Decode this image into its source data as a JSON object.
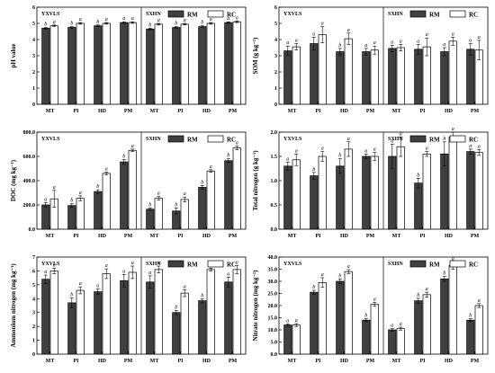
{
  "colors": {
    "rm_fill": "#404040",
    "rc_fill": "#ffffff",
    "outline": "#000000"
  },
  "chart_data": [
    {
      "type": "bar",
      "ylabel": "pH value",
      "ylim": [
        0,
        6
      ],
      "yticks": [
        0,
        1,
        2,
        3,
        4,
        5,
        6
      ],
      "sites": [
        "YXVLS",
        "SXHN"
      ],
      "categories": [
        "MT",
        "PI",
        "HD",
        "PM"
      ],
      "legend": [
        "RM",
        "RC"
      ],
      "grid": false,
      "legend_position": "top-right",
      "groups": [
        {
          "site": "YXVLS",
          "RM": [
            4.7,
            4.75,
            4.85,
            5.05
          ],
          "RM_err": [
            0.05,
            0.05,
            0.05,
            0.05
          ],
          "RC": [
            4.85,
            5.0,
            5.0,
            5.05
          ],
          "RC_err": [
            0.05,
            0.05,
            0.05,
            0.05
          ],
          "RM_sig": [
            "b",
            "b",
            "b",
            "a"
          ],
          "RC_sig": [
            "a",
            "a",
            "a",
            "a"
          ]
        },
        {
          "site": "SXHN",
          "RM": [
            4.65,
            4.75,
            4.8,
            5.05
          ],
          "RM_err": [
            0.05,
            0.05,
            0.05,
            0.05
          ],
          "RC": [
            4.95,
            4.95,
            5.0,
            5.1
          ],
          "RC_err": [
            0.05,
            0.05,
            0.05,
            0.05
          ],
          "RM_sig": [
            "b",
            "b",
            "b",
            "a"
          ],
          "RC_sig": [
            "a",
            "a",
            "a",
            "a"
          ]
        }
      ]
    },
    {
      "type": "bar",
      "ylabel": "SOM (g kg⁻¹)",
      "ylim": [
        0,
        6
      ],
      "yticks": [
        0,
        1,
        2,
        3,
        4,
        5,
        6
      ],
      "sites": [
        "YXVLS",
        "SXHN"
      ],
      "categories": [
        "MT",
        "PI",
        "HD",
        "PM"
      ],
      "legend": [
        "RM",
        "RC"
      ],
      "grid": false,
      "legend_position": "top-right",
      "groups": [
        {
          "site": "YXVLS",
          "RM": [
            3.3,
            3.75,
            3.25,
            3.25
          ],
          "RM_err": [
            0.3,
            0.4,
            0.2,
            0.2
          ],
          "RC": [
            3.55,
            4.3,
            4.05,
            3.35
          ],
          "RC_err": [
            0.2,
            0.5,
            0.35,
            0.25
          ],
          "RM_sig": [
            "a",
            "a",
            "b",
            "a"
          ],
          "RC_sig": [
            "a",
            "a",
            "a",
            "a"
          ]
        },
        {
          "site": "SXHN",
          "RM": [
            3.45,
            3.4,
            3.25,
            3.4
          ],
          "RM_err": [
            0.2,
            0.3,
            0.25,
            0.35
          ],
          "RC": [
            3.5,
            3.55,
            3.9,
            3.35
          ],
          "RC_err": [
            0.2,
            0.55,
            0.25,
            0.6
          ],
          "RM_sig": [
            "a",
            "a",
            "a",
            "a"
          ],
          "RC_sig": [
            "a",
            "a",
            "a",
            "a"
          ]
        }
      ]
    },
    {
      "type": "bar",
      "ylabel": "DOC (mg kg⁻¹)",
      "ylim": [
        0,
        800
      ],
      "yticks": [
        0,
        200,
        400,
        600,
        800
      ],
      "sites": [
        "YXVLS",
        "SXHN"
      ],
      "categories": [
        "MT",
        "PI",
        "HD",
        "PM"
      ],
      "legend": [
        "RM",
        "RC"
      ],
      "grid": false,
      "legend_position": "top-right",
      "groups": [
        {
          "site": "YXVLS",
          "RM": [
            200,
            195,
            310,
            555
          ],
          "RM_err": [
            20,
            15,
            15,
            20
          ],
          "RC": [
            250,
            255,
            460,
            650
          ],
          "RC_err": [
            70,
            20,
            10,
            10
          ],
          "RM_sig": [
            "a",
            "b",
            "b",
            "b"
          ],
          "RC_sig": [
            "a",
            "a",
            "a",
            "a"
          ]
        },
        {
          "site": "SXHN",
          "RM": [
            165,
            150,
            345,
            565
          ],
          "RM_err": [
            10,
            25,
            15,
            15
          ],
          "RC": [
            255,
            245,
            480,
            670
          ],
          "RC_err": [
            15,
            20,
            10,
            15
          ],
          "RM_sig": [
            "b",
            "b",
            "b",
            "b"
          ],
          "RC_sig": [
            "a",
            "a",
            "a",
            "a"
          ]
        }
      ]
    },
    {
      "type": "bar",
      "ylabel": "Total nitrogen (g kg⁻¹)",
      "ylim": [
        0,
        2.0
      ],
      "yticks": [
        0.0,
        0.5,
        1.0,
        1.5,
        2.0
      ],
      "sites": [
        "YXVLS",
        "SXHN"
      ],
      "categories": [
        "MT",
        "PI",
        "HD",
        "PM"
      ],
      "legend": [
        "RM",
        "RC"
      ],
      "grid": false,
      "legend_position": "top-right",
      "groups": [
        {
          "site": "YXVLS",
          "RM": [
            1.3,
            1.1,
            1.3,
            1.5
          ],
          "RM_err": [
            0.08,
            0.07,
            0.15,
            0.05
          ],
          "RC": [
            1.43,
            1.5,
            1.65,
            1.5
          ],
          "RC_err": [
            0.12,
            0.1,
            0.15,
            0.08
          ],
          "RM_sig": [
            "a",
            "b",
            "b",
            "a"
          ],
          "RC_sig": [
            "a",
            "a",
            "a",
            "a"
          ]
        },
        {
          "site": "SXHN",
          "RM": [
            1.5,
            0.95,
            1.55,
            1.6
          ],
          "RM_err": [
            0.25,
            0.1,
            0.25,
            0.05
          ],
          "RC": [
            1.7,
            1.55,
            1.9,
            1.58
          ],
          "RC_err": [
            0.2,
            0.05,
            0.1,
            0.06
          ],
          "RM_sig": [
            "a",
            "b",
            "b",
            "a"
          ],
          "RC_sig": [
            "a",
            "a",
            "a",
            "a"
          ]
        }
      ]
    },
    {
      "type": "bar",
      "ylabel": "Ammonium nitrogen (mg kg⁻¹)",
      "ylim": [
        0,
        7
      ],
      "yticks": [
        0,
        1,
        2,
        3,
        4,
        5,
        6,
        7
      ],
      "sites": [
        "YXVLS",
        "SXHN"
      ],
      "categories": [
        "MT",
        "PI",
        "HD",
        "PM"
      ],
      "legend": [
        "RM",
        "RC"
      ],
      "grid": false,
      "legend_position": "top-right",
      "groups": [
        {
          "site": "YXVLS",
          "RM": [
            5.4,
            3.7,
            4.5,
            5.3
          ],
          "RM_err": [
            0.3,
            0.35,
            0.2,
            0.45
          ],
          "RC": [
            6.0,
            4.6,
            5.8,
            5.9
          ],
          "RC_err": [
            0.2,
            0.25,
            0.35,
            0.45
          ],
          "RM_sig": [
            "a",
            "b",
            "a",
            "a"
          ],
          "RC_sig": [
            "a",
            "a",
            "a",
            "a"
          ]
        },
        {
          "site": "SXHN",
          "RM": [
            5.2,
            3.0,
            3.85,
            5.2
          ],
          "RM_err": [
            0.45,
            0.15,
            0.15,
            0.35
          ],
          "RC": [
            6.1,
            4.4,
            6.1,
            6.1
          ],
          "RC_err": [
            0.25,
            0.25,
            0.1,
            0.3
          ],
          "RM_sig": [
            "a",
            "b",
            "b",
            "a"
          ],
          "RC_sig": [
            "a",
            "a",
            "a",
            "a"
          ]
        }
      ]
    },
    {
      "type": "bar",
      "ylabel": "Nitrate nitrogen (mg kg⁻¹)",
      "ylim": [
        0,
        40
      ],
      "yticks": [
        0.0,
        5.0,
        10.0,
        15.0,
        20.0,
        25.0,
        30.0,
        35.0,
        40.0
      ],
      "sites": [
        "YXVLS",
        "SXHN"
      ],
      "categories": [
        "MT",
        "PI",
        "HD",
        "PM"
      ],
      "legend": [
        "RM",
        "RC"
      ],
      "grid": false,
      "legend_position": "top-right",
      "groups": [
        {
          "site": "YXVLS",
          "RM": [
            12.0,
            25.5,
            30.0,
            14.0
          ],
          "RM_err": [
            0.5,
            0.8,
            1.0,
            0.6
          ],
          "RC": [
            12.0,
            29.5,
            34.0,
            20.5
          ],
          "RC_err": [
            0.6,
            2.0,
            0.8,
            0.8
          ],
          "RM_sig": [
            "a",
            "b",
            "b",
            "b"
          ],
          "RC_sig": [
            "a",
            "a",
            "a",
            "a"
          ]
        },
        {
          "site": "SXHN",
          "RM": [
            10.0,
            22.0,
            31.0,
            14.0
          ],
          "RM_err": [
            0.5,
            1.0,
            1.0,
            0.6
          ],
          "RC": [
            10.5,
            24.5,
            36.5,
            20.0
          ],
          "RC_err": [
            0.6,
            1.0,
            1.5,
            0.8
          ],
          "RM_sig": [
            "a",
            "b",
            "b",
            "b"
          ],
          "RC_sig": [
            "a",
            "a",
            "a",
            "a"
          ]
        }
      ]
    }
  ]
}
